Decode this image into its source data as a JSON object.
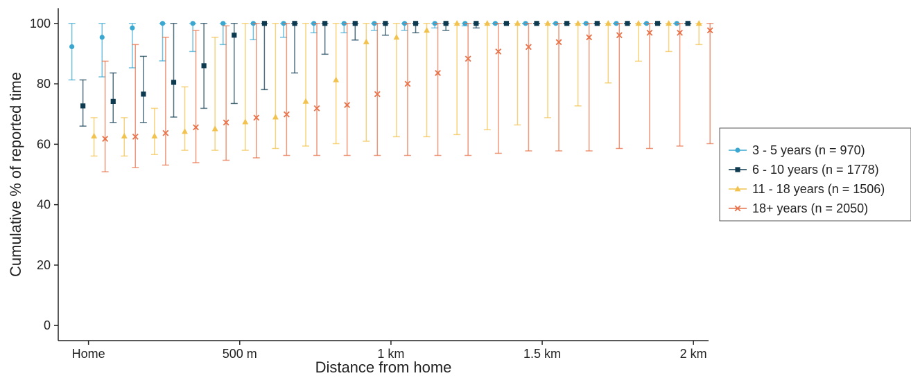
{
  "chart_data": {
    "type": "scatter",
    "xlabel": "Distance from home",
    "ylabel": "Cumulative % of reported time",
    "ylim": [
      -5,
      105
    ],
    "xlim": [
      -0.1,
      2.05
    ],
    "x_ticks": [
      {
        "value": 0,
        "label": "Home"
      },
      {
        "value": 0.5,
        "label": "500 m"
      },
      {
        "value": 1.0,
        "label": "1 km"
      },
      {
        "value": 1.5,
        "label": "1.5 km"
      },
      {
        "value": 2.0,
        "label": "2 km"
      }
    ],
    "y_ticks": [
      0,
      20,
      40,
      60,
      80,
      100
    ],
    "grid": false,
    "legend_position": "right",
    "x": [
      0,
      0.1,
      0.2,
      0.3,
      0.4,
      0.5,
      0.6,
      0.7,
      0.8,
      0.9,
      1.0,
      1.1,
      1.2,
      1.3,
      1.4,
      1.5,
      1.6,
      1.7,
      1.8,
      1.9,
      2.0
    ],
    "series": [
      {
        "name": "3 - 5 years (n = 970)",
        "color": "#3aa7d1",
        "marker": "circle",
        "values": [
          92.3,
          95.4,
          98.5,
          100,
          100,
          100,
          100,
          100,
          100,
          100,
          100,
          100,
          100,
          100,
          100,
          100,
          100,
          100,
          100,
          100,
          100
        ],
        "lower": [
          81.3,
          82.3,
          85.3,
          87.6,
          90.7,
          93.0,
          94.6,
          95.4,
          96.9,
          96.9,
          97.7,
          97.7,
          98.5,
          99.2,
          100,
          100,
          100,
          100,
          100,
          100,
          100
        ],
        "upper": [
          100,
          100,
          100,
          100,
          100,
          100,
          100,
          100,
          100,
          100,
          100,
          100,
          100,
          100,
          100,
          100,
          100,
          100,
          100,
          100,
          100
        ]
      },
      {
        "name": "6 - 10 years (n = 1778)",
        "color": "#0e3a50",
        "marker": "square",
        "values": [
          72.7,
          74.2,
          76.6,
          80.5,
          86.0,
          96.1,
          100,
          100,
          100,
          100,
          100,
          100,
          100,
          100,
          100,
          100,
          100,
          100,
          100,
          100,
          100
        ],
        "lower": [
          66.0,
          67.2,
          67.2,
          69.0,
          71.9,
          73.5,
          78.1,
          83.6,
          89.8,
          94.5,
          96.1,
          96.9,
          97.7,
          98.5,
          100,
          100,
          100,
          100,
          100,
          100,
          100
        ],
        "upper": [
          81.3,
          83.6,
          89.1,
          100,
          100,
          100,
          100,
          100,
          100,
          100,
          100,
          100,
          100,
          100,
          100,
          100,
          100,
          100,
          100,
          100,
          100
        ]
      },
      {
        "name": "11 - 18 years (n = 1506)",
        "color": "#f2c24e",
        "marker": "triangle",
        "values": [
          62.7,
          62.7,
          62.7,
          64.2,
          65.1,
          67.4,
          69.0,
          74.2,
          81.3,
          93.9,
          95.4,
          97.7,
          100,
          100,
          100,
          100,
          100,
          100,
          100,
          100,
          100
        ],
        "lower": [
          56.1,
          56.1,
          56.6,
          58.0,
          58.0,
          58.0,
          58.6,
          59.4,
          60.2,
          61.0,
          62.5,
          62.5,
          63.2,
          64.8,
          66.4,
          68.8,
          72.7,
          80.3,
          87.5,
          90.7,
          93.0
        ],
        "upper": [
          68.8,
          68.8,
          71.9,
          79.0,
          95.4,
          100,
          100,
          100,
          100,
          100,
          100,
          100,
          100,
          100,
          100,
          100,
          100,
          100,
          100,
          100,
          100
        ]
      },
      {
        "name": "18+ years (n = 2050)",
        "color": "#e8724a",
        "marker": "x",
        "values": [
          61.8,
          62.5,
          63.7,
          65.6,
          67.2,
          68.8,
          69.9,
          71.9,
          73.0,
          76.6,
          80.0,
          83.6,
          88.3,
          90.7,
          92.2,
          93.8,
          95.4,
          96.1,
          96.9,
          96.9,
          97.7
        ],
        "lower": [
          50.9,
          52.3,
          53.1,
          53.9,
          54.7,
          55.5,
          56.3,
          56.3,
          56.3,
          56.3,
          56.3,
          56.3,
          56.3,
          57.0,
          57.8,
          57.8,
          57.8,
          58.6,
          58.6,
          59.4,
          60.2
        ],
        "upper": [
          87.5,
          93.0,
          95.4,
          97.7,
          99.2,
          100,
          100,
          100,
          100,
          100,
          100,
          100,
          100,
          100,
          100,
          100,
          100,
          100,
          100,
          100,
          100
        ]
      }
    ]
  }
}
